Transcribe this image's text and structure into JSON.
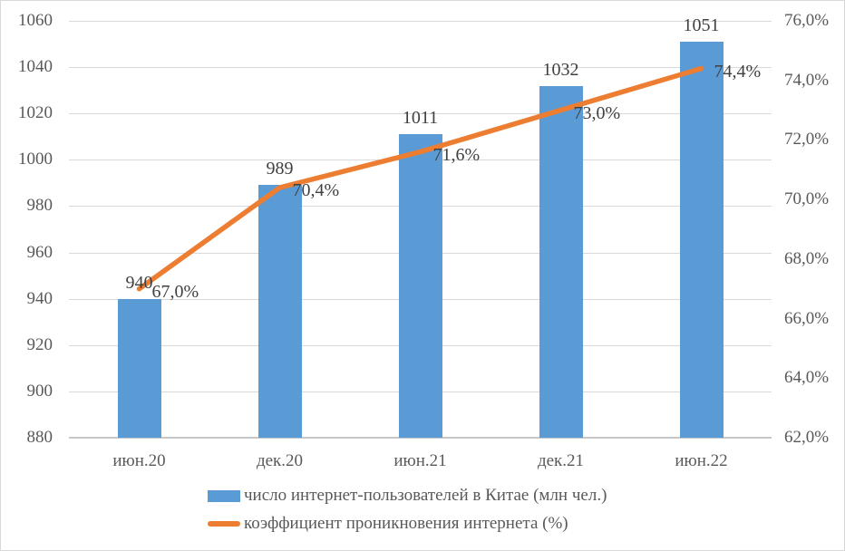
{
  "chart_data": {
    "type": "combo",
    "categories": [
      "июн.20",
      "дек.20",
      "июн.21",
      "дек.21",
      "июн.22"
    ],
    "series": [
      {
        "name": "число интернет-пользователей в Китае (млн чел.)",
        "type": "bar",
        "axis": "left",
        "color": "#5B9BD5",
        "values": [
          940,
          989,
          1011,
          1032,
          1051
        ],
        "labels": [
          "940",
          "989",
          "1011",
          "1032",
          "1051"
        ]
      },
      {
        "name": "коэффициент проникновения интернета (%)",
        "type": "line",
        "axis": "right",
        "color": "#ED7D31",
        "values": [
          67.0,
          70.4,
          71.6,
          73.0,
          74.4
        ],
        "labels": [
          "67,0%",
          "70,4%",
          "71,6%",
          "73,0%",
          "74,4%"
        ]
      }
    ],
    "left_axis": {
      "min": 880,
      "max": 1060,
      "step": 20,
      "tick_labels": [
        "1060",
        "1040",
        "1020",
        "1000",
        "980",
        "960",
        "940",
        "920",
        "900",
        "880"
      ]
    },
    "right_axis": {
      "min": 62,
      "max": 76,
      "step": 2,
      "tick_labels": [
        "76,0%",
        "74,0%",
        "72,0%",
        "70,0%",
        "68,0%",
        "66,0%",
        "64,0%",
        "62,0%"
      ]
    },
    "grid": true,
    "legend_position": "bottom-left"
  },
  "colors": {
    "bar": "#5B9BD5",
    "line": "#ED7D31",
    "gridline": "#D9D9D9",
    "axis_line": "#C8C8C8",
    "axis_text": "#595959",
    "data_label_text": "#404040",
    "frame_border": "#D9D9D9",
    "background": "#FFFFFF"
  }
}
